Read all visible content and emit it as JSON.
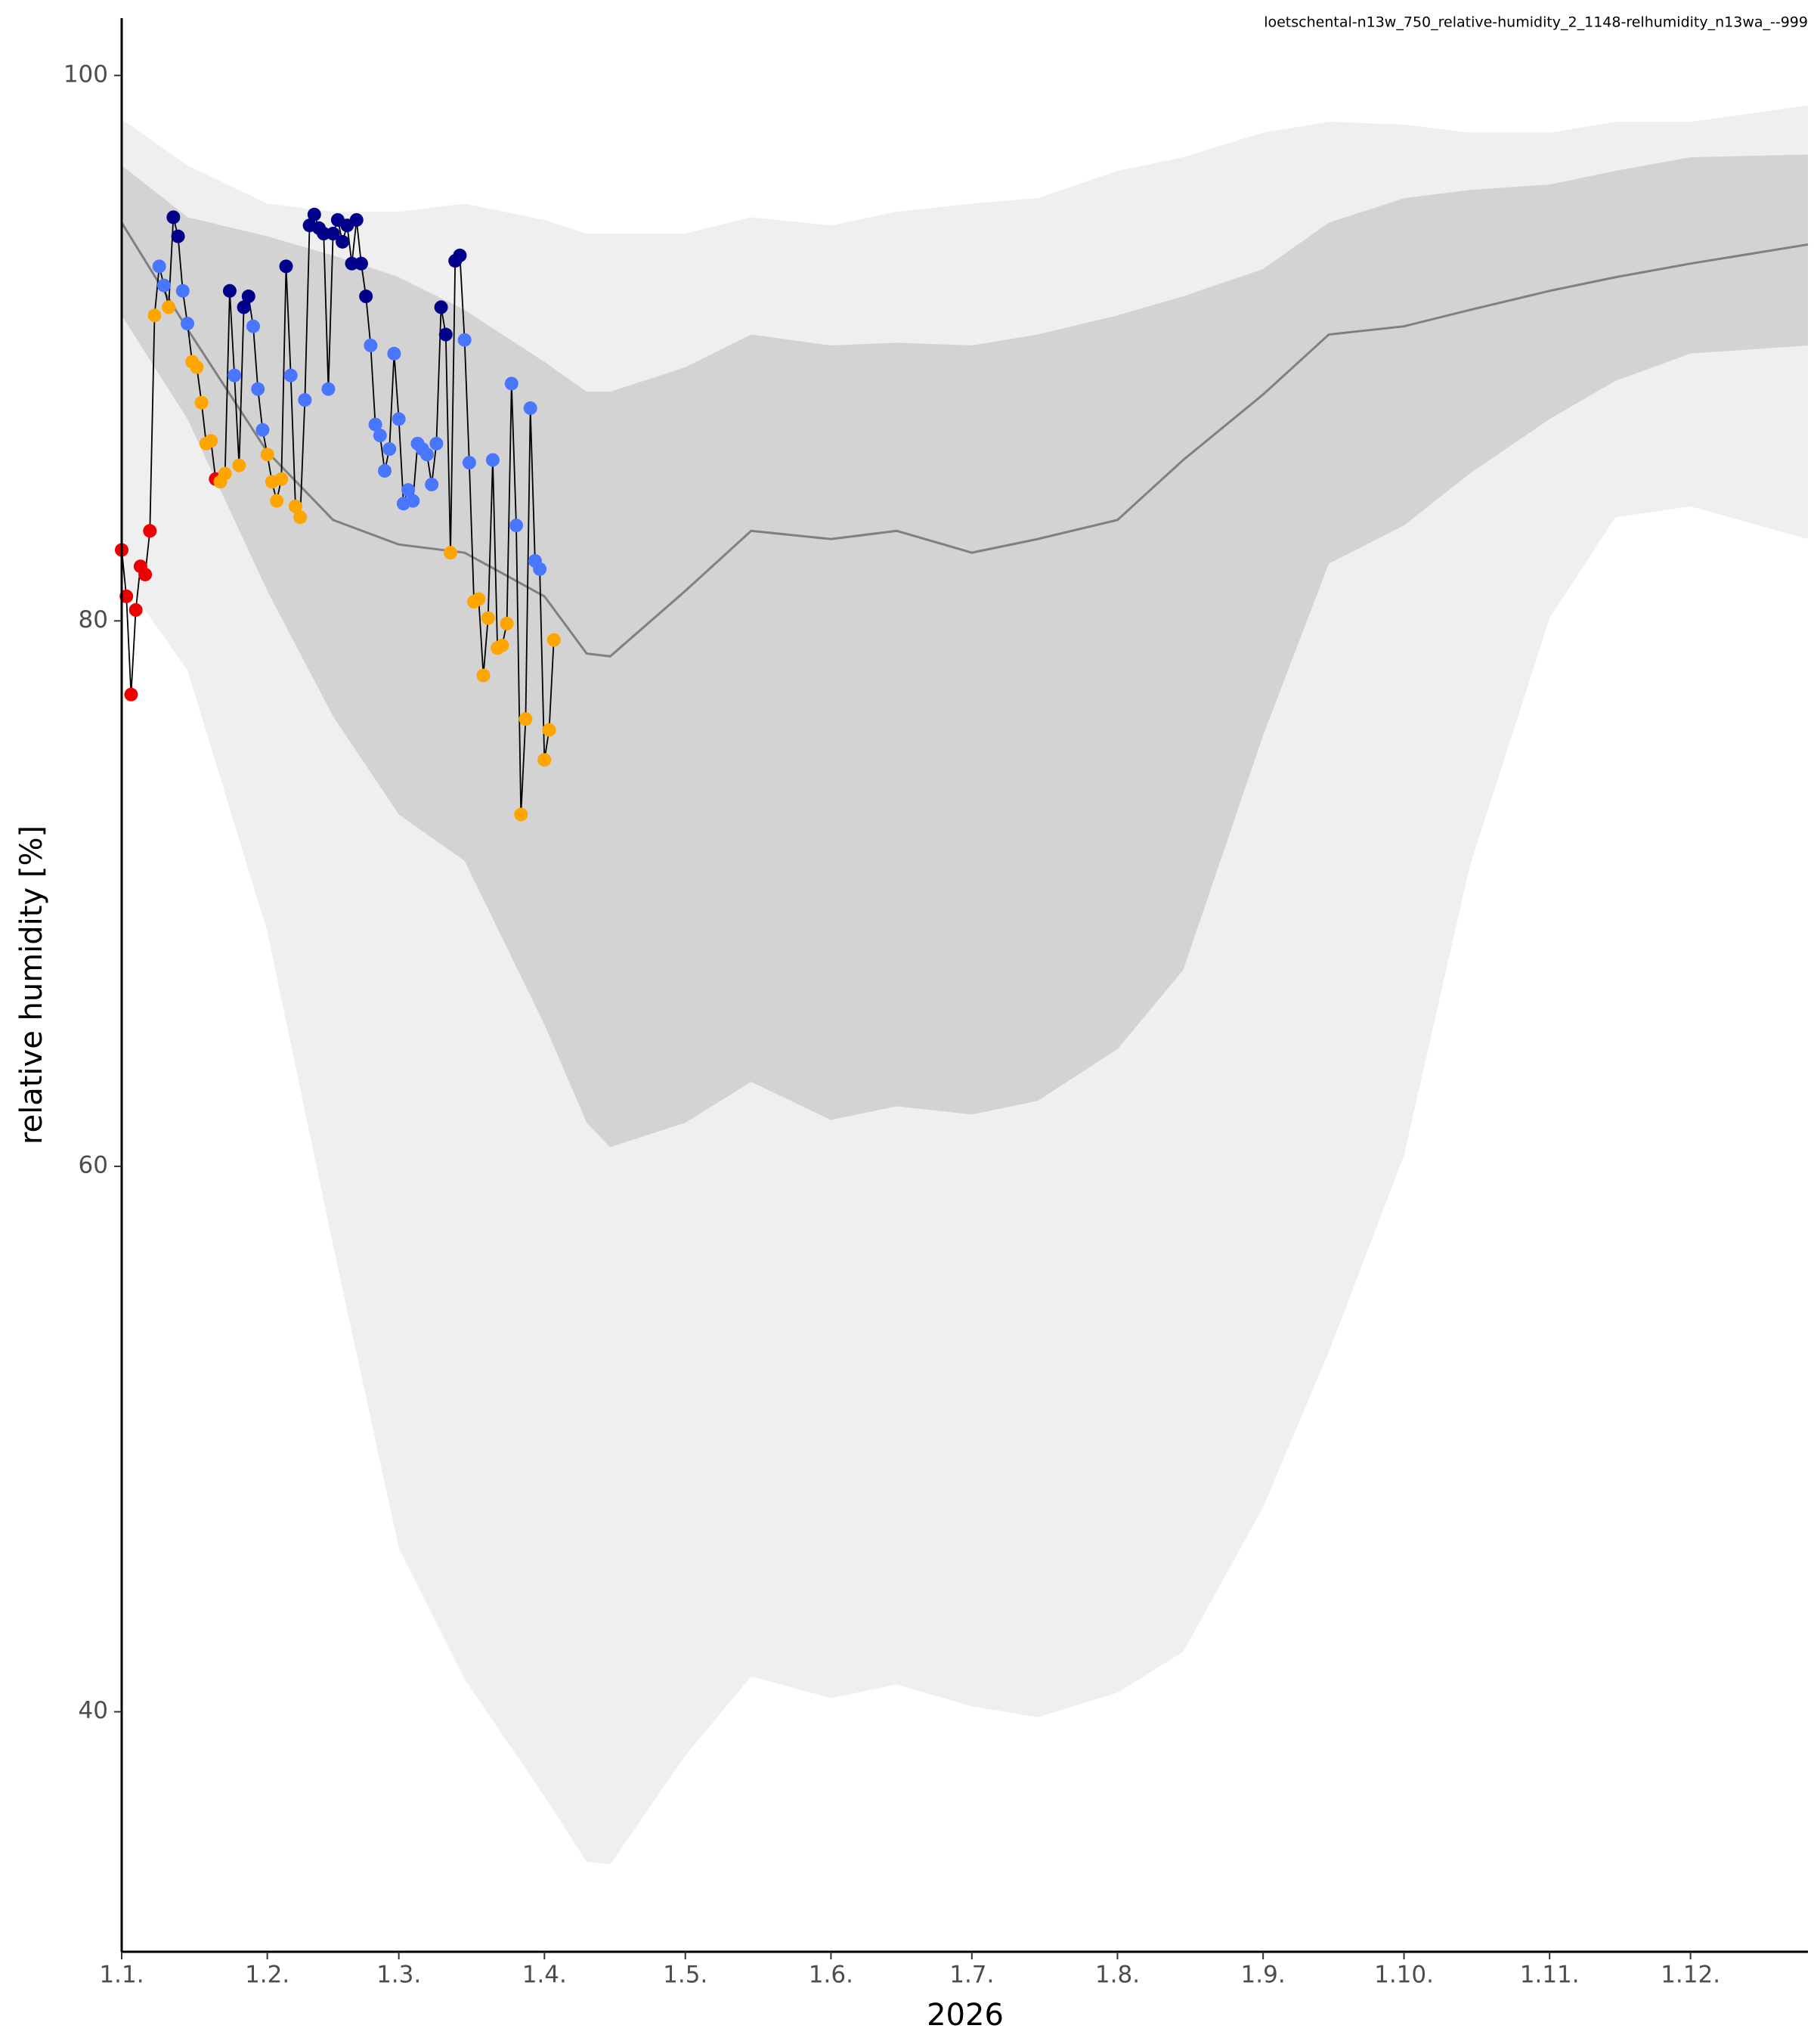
{
  "chart_data": {
    "type": "line",
    "title": "loetschental-n13w_750_relative-humidity_2_1148-relhumidity_n13wa_--999",
    "xlabel": "2026",
    "ylabel": "relative humidity [%]",
    "xlim": [
      "2026-01-01",
      "2026-12-26"
    ],
    "ylim": [
      31.2,
      102.1
    ],
    "xticks": [
      {
        "value": "2026-01-01",
        "label": "1.1."
      },
      {
        "value": "2026-02-01",
        "label": "1.2."
      },
      {
        "value": "2026-03-01",
        "label": "1.3."
      },
      {
        "value": "2026-04-01",
        "label": "1.4."
      },
      {
        "value": "2026-05-01",
        "label": "1.5."
      },
      {
        "value": "2026-06-01",
        "label": "1.6."
      },
      {
        "value": "2026-07-01",
        "label": "1.7."
      },
      {
        "value": "2026-08-01",
        "label": "1.8."
      },
      {
        "value": "2026-09-01",
        "label": "1.9."
      },
      {
        "value": "2026-10-01",
        "label": "1.10."
      },
      {
        "value": "2026-11-01",
        "label": "1.11."
      },
      {
        "value": "2026-12-01",
        "label": "1.12."
      }
    ],
    "yticks": [
      40,
      60,
      80,
      100
    ],
    "reference": {
      "x": [
        "2026-01-01",
        "2026-01-15",
        "2026-02-01",
        "2026-02-15",
        "2026-03-01",
        "2026-03-15",
        "2026-04-01",
        "2026-04-10",
        "2026-04-15",
        "2026-05-01",
        "2026-05-15",
        "2026-06-01",
        "2026-06-15",
        "2026-07-01",
        "2026-07-15",
        "2026-08-01",
        "2026-08-15",
        "2026-09-01",
        "2026-09-15",
        "2026-10-01",
        "2026-10-15",
        "2026-11-01",
        "2026-11-15",
        "2026-12-01",
        "2026-12-26"
      ],
      "max": [
        98.4,
        96.7,
        95.3,
        95.0,
        95.0,
        95.3,
        94.7,
        94.2,
        94.2,
        94.2,
        94.8,
        94.5,
        95.0,
        95.3,
        95.5,
        96.5,
        97.0,
        97.9,
        98.3,
        98.2,
        97.9,
        97.9,
        98.3,
        98.3,
        98.9
      ],
      "q_high": [
        96.7,
        94.8,
        94.1,
        93.4,
        92.6,
        91.4,
        89.5,
        88.4,
        88.4,
        89.3,
        90.5,
        90.1,
        90.2,
        90.1,
        90.5,
        91.2,
        91.9,
        92.9,
        94.6,
        95.5,
        95.8,
        96.0,
        96.5,
        97.0,
        97.1
      ],
      "median": [
        94.6,
        90.7,
        86.2,
        83.7,
        82.8,
        82.5,
        80.9,
        78.8,
        78.7,
        81.1,
        83.3,
        83.0,
        83.3,
        82.5,
        83.0,
        83.7,
        85.9,
        88.3,
        90.5,
        90.8,
        91.4,
        92.1,
        92.6,
        93.1,
        93.8
      ],
      "q_low": [
        91.2,
        87.4,
        81.1,
        76.5,
        72.9,
        71.2,
        65.2,
        61.6,
        60.7,
        61.6,
        63.1,
        61.7,
        62.2,
        61.9,
        62.4,
        64.3,
        67.2,
        75.8,
        82.1,
        83.5,
        85.4,
        87.4,
        88.8,
        89.8,
        90.1
      ],
      "min": [
        81.6,
        78.2,
        68.6,
        57.1,
        46.0,
        41.2,
        36.9,
        34.5,
        34.4,
        38.4,
        41.3,
        40.5,
        41.0,
        40.2,
        39.8,
        40.7,
        42.2,
        47.5,
        53.2,
        60.4,
        71.0,
        80.1,
        83.8,
        84.2,
        83.0
      ],
      "envelope_color": "#efefef",
      "band_color": "#d3d3d3",
      "median_color": "#808080"
    },
    "series": [
      {
        "color": "#000000",
        "x": [
          "2026-01-01",
          "2026-01-02",
          "2026-01-03",
          "2026-01-04",
          "2026-01-05",
          "2026-01-06",
          "2026-01-07",
          "2026-01-08",
          "2026-01-09",
          "2026-01-10",
          "2026-01-11",
          "2026-01-12",
          "2026-01-13",
          "2026-01-14",
          "2026-01-15",
          "2026-01-16",
          "2026-01-17",
          "2026-01-18",
          "2026-01-19",
          "2026-01-20",
          "2026-01-21",
          "2026-01-22",
          "2026-01-23",
          "2026-01-24",
          "2026-01-25",
          "2026-01-26",
          "2026-01-27",
          "2026-01-28",
          "2026-01-29",
          "2026-01-30",
          "2026-01-31",
          "2026-02-01",
          "2026-02-02",
          "2026-02-03",
          "2026-02-04",
          "2026-02-05",
          "2026-02-06",
          "2026-02-07",
          "2026-02-08",
          "2026-02-09",
          "2026-02-10",
          "2026-02-11",
          "2026-02-12",
          "2026-02-13",
          "2026-02-14",
          "2026-02-15",
          "2026-02-16",
          "2026-02-17",
          "2026-02-18",
          "2026-02-19",
          "2026-02-20",
          "2026-02-21",
          "2026-02-22",
          "2026-02-23",
          "2026-02-24",
          "2026-02-25",
          "2026-02-26",
          "2026-02-27",
          "2026-02-28",
          "2026-03-01",
          "2026-03-02",
          "2026-03-03",
          "2026-03-04",
          "2026-03-05",
          "2026-03-06",
          "2026-03-07",
          "2026-03-08",
          "2026-03-09",
          "2026-03-10",
          "2026-03-11",
          "2026-03-12",
          "2026-03-13",
          "2026-03-14",
          "2026-03-15",
          "2026-03-16",
          "2026-03-17",
          "2026-03-18",
          "2026-03-19",
          "2026-03-20",
          "2026-03-21",
          "2026-03-22",
          "2026-03-23",
          "2026-03-24",
          "2026-03-25",
          "2026-03-26",
          "2026-03-27",
          "2026-03-28",
          "2026-03-29",
          "2026-03-30",
          "2026-03-31",
          "2026-04-01",
          "2026-04-02",
          "2026-04-03"
        ],
        "values": [
          82.6,
          80.9,
          77.3,
          80.4,
          82.0,
          81.7,
          83.3,
          91.2,
          93.0,
          92.3,
          91.5,
          94.8,
          94.1,
          92.1,
          90.9,
          89.5,
          89.3,
          88.0,
          86.5,
          86.6,
          85.2,
          85.1,
          85.4,
          92.1,
          89.0,
          85.7,
          91.5,
          91.9,
          90.8,
          88.5,
          87.0,
          86.1,
          85.1,
          84.4,
          85.2,
          93.0,
          89.0,
          84.2,
          83.8,
          88.1,
          94.5,
          94.9,
          94.4,
          94.2,
          88.5,
          94.2,
          94.7,
          93.9,
          94.5,
          93.1,
          94.7,
          93.1,
          91.9,
          90.1,
          87.2,
          86.8,
          85.5,
          86.3,
          89.8,
          87.4,
          84.3,
          84.8,
          84.4,
          86.5,
          86.3,
          86.1,
          85.0,
          86.5,
          91.5,
          90.5,
          82.5,
          93.2,
          93.4,
          90.3,
          85.8,
          80.7,
          80.8,
          78.0,
          80.1,
          85.9,
          79.0,
          79.1,
          79.9,
          88.7,
          83.5,
          72.9,
          76.4,
          87.8,
          82.2,
          81.9,
          74.9,
          76.0,
          79.3
        ],
        "point_colors": [
          "#ee0000",
          "#ee0000",
          "#ee0000",
          "#ee0000",
          "#ee0000",
          "#ee0000",
          "#ee0000",
          "#ffa500",
          "#4876ff",
          "#4876ff",
          "#ffa500",
          "#00008b",
          "#00008b",
          "#4876ff",
          "#4876ff",
          "#ffa500",
          "#ffa500",
          "#ffa500",
          "#ffa500",
          "#ffa500",
          "#ee0000",
          "#ffa500",
          "#ffa500",
          "#00008b",
          "#4876ff",
          "#ffa500",
          "#00008b",
          "#00008b",
          "#4876ff",
          "#4876ff",
          "#4876ff",
          "#ffa500",
          "#ffa500",
          "#ffa500",
          "#ffa500",
          "#00008b",
          "#4876ff",
          "#ffa500",
          "#ffa500",
          "#4876ff",
          "#00008b",
          "#00008b",
          "#00008b",
          "#00008b",
          "#4876ff",
          "#00008b",
          "#00008b",
          "#00008b",
          "#00008b",
          "#00008b",
          "#00008b",
          "#00008b",
          "#00008b",
          "#4876ff",
          "#4876ff",
          "#4876ff",
          "#4876ff",
          "#4876ff",
          "#4876ff",
          "#4876ff",
          "#4876ff",
          "#4876ff",
          "#4876ff",
          "#4876ff",
          "#4876ff",
          "#4876ff",
          "#4876ff",
          "#4876ff",
          "#00008b",
          "#00008b",
          "#ffa500",
          "#00008b",
          "#00008b",
          "#4876ff",
          "#4876ff",
          "#ffa500",
          "#ffa500",
          "#ffa500",
          "#ffa500",
          "#4876ff",
          "#ffa500",
          "#ffa500",
          "#ffa500",
          "#4876ff",
          "#4876ff",
          "#ffa500",
          "#ffa500",
          "#4876ff",
          "#4876ff",
          "#4876ff",
          "#ffa500",
          "#ffa500",
          "#ffa500"
        ]
      }
    ]
  }
}
